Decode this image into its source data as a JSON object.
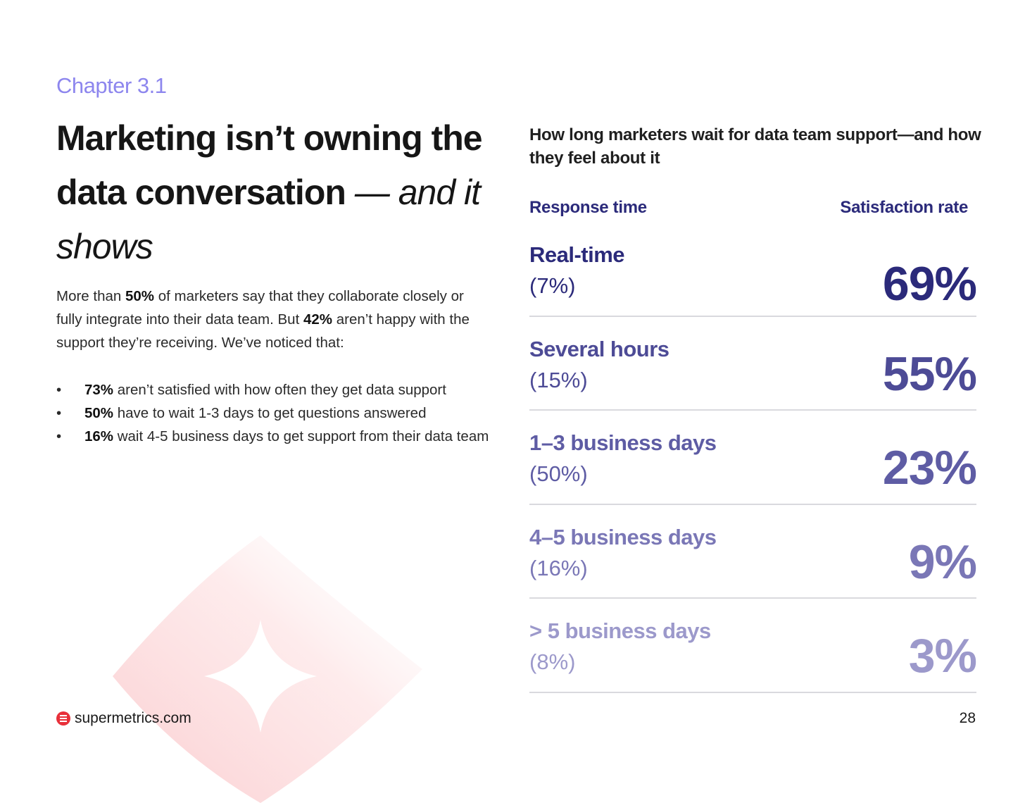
{
  "chapter": "Chapter 3.1",
  "title": {
    "bold_line": "Marketing isn’t owning the data conversation",
    "italic_part": "— and it shows"
  },
  "intro": {
    "p1": "More than ",
    "b1": "50%",
    "p2": " of marketers say that they collaborate closely or fully integrate into their data team. But ",
    "b2": "42%",
    "p3": " aren’t happy with the support they’re receiving. We’ve noticed that:"
  },
  "bullets": [
    {
      "bold": "73%",
      "text": " aren’t satisfied with how often they get data support"
    },
    {
      "bold": "50%",
      "text": " have to wait 1-3 days to get questions answered"
    },
    {
      "bold": "16%",
      "text": " wait 4-5 business days to get support from their data team"
    }
  ],
  "bullet_symbol": "•",
  "chart_title": "How long marketers wait for data team support—and how they feel about it",
  "columns": {
    "left": "Response time",
    "right": "Satisfaction rate"
  },
  "rows": [
    {
      "label": "Real-time",
      "share": "(7%)",
      "pct": "69%",
      "color": "#2b2a7a"
    },
    {
      "label": "Several hours",
      "share": "(15%)",
      "pct": "55%",
      "color": "#4d4b96"
    },
    {
      "label": "1–3 business days",
      "share": "(50%)",
      "pct": "23%",
      "color": "#5e5ca4"
    },
    {
      "label": "4–5 business days",
      "share": "(16%)",
      "pct": "9%",
      "color": "#7a77b6"
    },
    {
      "label": "> 5 business days",
      "share": "(8%)",
      "pct": "3%",
      "color": "#9c99cb"
    }
  ],
  "footer": {
    "site": "supermetrics.com",
    "page": "28"
  },
  "colors": {
    "accent": "#8d86ee",
    "brand_red": "#e8303a",
    "navy": "#2b2a7a"
  }
}
